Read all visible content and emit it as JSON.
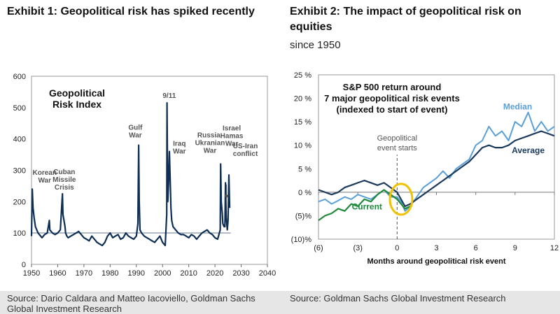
{
  "exhibit1": {
    "title": "Exhibit 1: Geopolitical risk has spiked recently",
    "source": "Source: Dario Caldara and Matteo Iacoviello, Goldman Sachs Global Investment Research"
  },
  "exhibit2": {
    "title_line1": "Exhibit 2: The impact of geopolitical risk on",
    "title_line2": "equities",
    "subtitle": "since 1950",
    "source": "Source: Goldman Sachs Global Investment Research"
  },
  "colors": {
    "index_line": "#0e2f55",
    "reference_line": "#9aa5b0",
    "median": "#5a9fd8",
    "average": "#1b3a5c",
    "current": "#1e8a3c",
    "highlight": "#f2c200",
    "annotation": "#555555"
  },
  "chart_data": [
    {
      "type": "line",
      "title": "Geopolitical Risk Index",
      "title_lines": [
        "Geopolitical",
        "Risk Index"
      ],
      "xlabel": "",
      "ylabel": "",
      "xlim": [
        1950,
        2040
      ],
      "ylim": [
        0,
        600
      ],
      "xticks": [
        1950,
        1960,
        1970,
        1980,
        1990,
        2000,
        2010,
        2020,
        2030,
        2040
      ],
      "yticks": [
        0,
        100,
        200,
        300,
        400,
        500,
        600
      ],
      "reference_line": 100,
      "series": [
        {
          "name": "Geopolitical Risk Index",
          "x": [
            1950,
            1950.3,
            1950.6,
            1951,
            1951.5,
            1952,
            1952.5,
            1953,
            1953.5,
            1954,
            1955,
            1956,
            1956.8,
            1957,
            1958,
            1959,
            1960,
            1961,
            1961.8,
            1962,
            1962.8,
            1963,
            1963.5,
            1964,
            1965,
            1966,
            1967,
            1968,
            1969,
            1970,
            1971,
            1972,
            1973,
            1974,
            1975,
            1976,
            1977,
            1978,
            1979,
            1980,
            1981,
            1982,
            1983,
            1984,
            1985,
            1986,
            1987,
            1988,
            1989,
            1990,
            1990.6,
            1990.9,
            1991.1,
            1991.4,
            1992,
            1993,
            1994,
            1995,
            1996,
            1997,
            1998,
            1999,
            2000,
            2001,
            2001.6,
            2001.7,
            2001.9,
            2002,
            2002.3,
            2002.6,
            2003,
            2003.2,
            2003.5,
            2004,
            2005,
            2006,
            2007,
            2008,
            2009,
            2010,
            2011,
            2012,
            2013,
            2014,
            2015,
            2016,
            2017,
            2018,
            2019,
            2020,
            2021,
            2022,
            2022.15,
            2022.4,
            2022.8,
            2023,
            2023.5,
            2023.8,
            2024,
            2024.3,
            2024.7,
            2025,
            2025.3,
            2025.6
          ],
          "values": [
            90,
            240,
            180,
            150,
            120,
            110,
            100,
            95,
            90,
            85,
            95,
            100,
            140,
            110,
            100,
            95,
            100,
            110,
            225,
            160,
            120,
            100,
            90,
            85,
            90,
            95,
            100,
            105,
            95,
            85,
            80,
            75,
            90,
            80,
            70,
            65,
            60,
            70,
            90,
            100,
            85,
            90,
            95,
            80,
            85,
            100,
            90,
            85,
            80,
            90,
            130,
            380,
            200,
            110,
            100,
            90,
            85,
            80,
            75,
            70,
            80,
            90,
            70,
            60,
            160,
            515,
            300,
            200,
            260,
            360,
            240,
            180,
            140,
            120,
            110,
            100,
            95,
            95,
            90,
            85,
            95,
            90,
            80,
            90,
            100,
            105,
            110,
            100,
            95,
            85,
            80,
            110,
            320,
            200,
            160,
            130,
            120,
            120,
            260,
            150,
            110,
            140,
            285,
            180
          ]
        }
      ],
      "annotations": [
        {
          "label": [
            "Korean",
            "War"
          ],
          "x": 1951,
          "y": 245
        },
        {
          "label": [
            "Cuban",
            "Missile",
            "Crisis"
          ],
          "x": 1962.5,
          "y": 225
        },
        {
          "label": [
            "Gulf",
            "War"
          ],
          "x": 1990.7,
          "y": 380
        },
        {
          "label": [
            "9/11"
          ],
          "x": 2001.5,
          "y": 515
        },
        {
          "label": [
            "Iraq",
            "War"
          ],
          "x": 2003.5,
          "y": 360
        },
        {
          "label": [
            "Russia-",
            "Ukranian",
            "War"
          ],
          "x": 2020.5,
          "y": 320
        },
        {
          "label": [
            "Israel",
            "Hamas",
            "War"
          ],
          "x": 2024,
          "y": 260
        },
        {
          "label": [
            "US-Iran",
            "conflict"
          ],
          "x": 2030,
          "y": 285
        }
      ]
    },
    {
      "type": "line",
      "title": "S&P 500 return around 7 major geopolitical risk events (indexed to start of event)",
      "title_lines": [
        "S&P 500 return around",
        "7 major geopolitical risk events",
        "(indexed to start of event)"
      ],
      "xlabel": "Months around geopolitical risk event",
      "ylabel": "",
      "xlim": [
        -6,
        12
      ],
      "ylim": [
        -10,
        25
      ],
      "xticks": [
        -6,
        -3,
        0,
        3,
        6,
        9,
        12
      ],
      "xtick_labels": [
        "(6)",
        "(3)",
        "0",
        "3",
        "6",
        "9",
        "12"
      ],
      "yticks": [
        -10,
        -5,
        0,
        5,
        10,
        15,
        20,
        25
      ],
      "ytick_labels": [
        "(10)%",
        "(5)%",
        "0 %",
        "5 %",
        "10 %",
        "15 %",
        "20 %",
        "25 %"
      ],
      "event_marker": {
        "x": 0,
        "label": [
          "Geopolitical",
          "event starts"
        ]
      },
      "series": [
        {
          "name": "Median",
          "x": [
            -6,
            -5.5,
            -5,
            -4.5,
            -4,
            -3.5,
            -3,
            -2.5,
            -2,
            -1.5,
            -1,
            -0.5,
            0,
            0.3,
            0.6,
            1,
            1.5,
            2,
            2.5,
            3,
            3.5,
            4,
            4.5,
            5,
            5.5,
            6,
            6.5,
            7,
            7.5,
            8,
            8.5,
            9,
            9.5,
            10,
            10.5,
            11,
            11.5,
            12
          ],
          "values": [
            -2,
            -1.5,
            -2.5,
            -1.8,
            -1,
            -1.5,
            -0.5,
            -1,
            -1.5,
            -0.5,
            0.5,
            -1,
            -1,
            -2,
            -4,
            -3,
            -1,
            1,
            2,
            3,
            4.5,
            3,
            5,
            6,
            7,
            10,
            11,
            14,
            12,
            13,
            11,
            15,
            14,
            17,
            13,
            15,
            13,
            14
          ]
        },
        {
          "name": "Average",
          "x": [
            -6,
            -5.5,
            -5,
            -4.5,
            -4,
            -3.5,
            -3,
            -2.5,
            -2,
            -1.5,
            -1,
            -0.5,
            0,
            0.3,
            0.6,
            1,
            1.5,
            2,
            2.5,
            3,
            3.5,
            4,
            4.5,
            5,
            5.5,
            6,
            6.5,
            7,
            7.5,
            8,
            8.5,
            9,
            9.5,
            10,
            10.5,
            11,
            11.5,
            12
          ],
          "values": [
            0.5,
            0,
            -0.5,
            0,
            1,
            1.5,
            2,
            2.5,
            2,
            1.5,
            2,
            1,
            0,
            -1.5,
            -3,
            -2.5,
            -1.5,
            -0.5,
            0.5,
            1.5,
            2.5,
            3.5,
            4.5,
            5.5,
            6.5,
            8,
            9.5,
            10,
            9.5,
            9.5,
            10,
            11,
            11.5,
            12,
            12.5,
            13,
            12.5,
            12
          ]
        },
        {
          "name": "Current",
          "x": [
            -6,
            -5.5,
            -5,
            -4.5,
            -4,
            -3.5,
            -3,
            -2.5,
            -2,
            -1.5,
            -1,
            -0.5,
            0,
            0.3,
            0.6,
            1
          ],
          "values": [
            -6,
            -5,
            -4.5,
            -3.5,
            -4,
            -2.5,
            -3,
            -1.5,
            -2,
            -0.5,
            0.5,
            -0.5,
            -1.5,
            -2.5,
            -3.5,
            -3
          ]
        }
      ],
      "labels": {
        "median": "Median",
        "average": "Average",
        "current": "Current"
      }
    }
  ]
}
